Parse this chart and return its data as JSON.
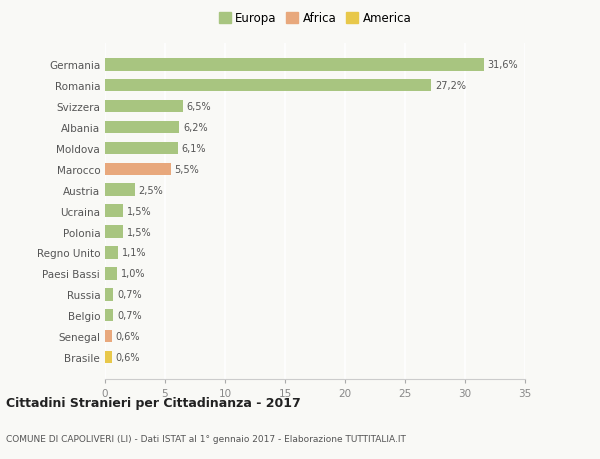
{
  "categories": [
    "Germania",
    "Romania",
    "Svizzera",
    "Albania",
    "Moldova",
    "Marocco",
    "Austria",
    "Ucraina",
    "Polonia",
    "Regno Unito",
    "Paesi Bassi",
    "Russia",
    "Belgio",
    "Senegal",
    "Brasile"
  ],
  "values": [
    31.6,
    27.2,
    6.5,
    6.2,
    6.1,
    5.5,
    2.5,
    1.5,
    1.5,
    1.1,
    1.0,
    0.7,
    0.7,
    0.6,
    0.6
  ],
  "labels": [
    "31,6%",
    "27,2%",
    "6,5%",
    "6,2%",
    "6,1%",
    "5,5%",
    "2,5%",
    "1,5%",
    "1,5%",
    "1,1%",
    "1,0%",
    "0,7%",
    "0,7%",
    "0,6%",
    "0,6%"
  ],
  "colors": [
    "#a8c580",
    "#a8c580",
    "#a8c580",
    "#a8c580",
    "#a8c580",
    "#e8a87c",
    "#a8c580",
    "#a8c580",
    "#a8c580",
    "#a8c580",
    "#a8c580",
    "#a8c580",
    "#a8c580",
    "#e8a87c",
    "#e8c84a"
  ],
  "continent": [
    "Europa",
    "Europa",
    "Europa",
    "Europa",
    "Europa",
    "Africa",
    "Europa",
    "Europa",
    "Europa",
    "Europa",
    "Europa",
    "Europa",
    "Europa",
    "Africa",
    "America"
  ],
  "legend_labels": [
    "Europa",
    "Africa",
    "America"
  ],
  "legend_colors": [
    "#a8c580",
    "#e8a87c",
    "#e8c84a"
  ],
  "title": "Cittadini Stranieri per Cittadinanza - 2017",
  "subtitle": "COMUNE DI CAPOLIVERI (LI) - Dati ISTAT al 1° gennaio 2017 - Elaborazione TUTTITALIA.IT",
  "xlim": [
    0,
    35
  ],
  "xticks": [
    0,
    5,
    10,
    15,
    20,
    25,
    30,
    35
  ],
  "background_color": "#f9f9f6",
  "grid_color": "#e8e8e8",
  "bar_height": 0.6
}
